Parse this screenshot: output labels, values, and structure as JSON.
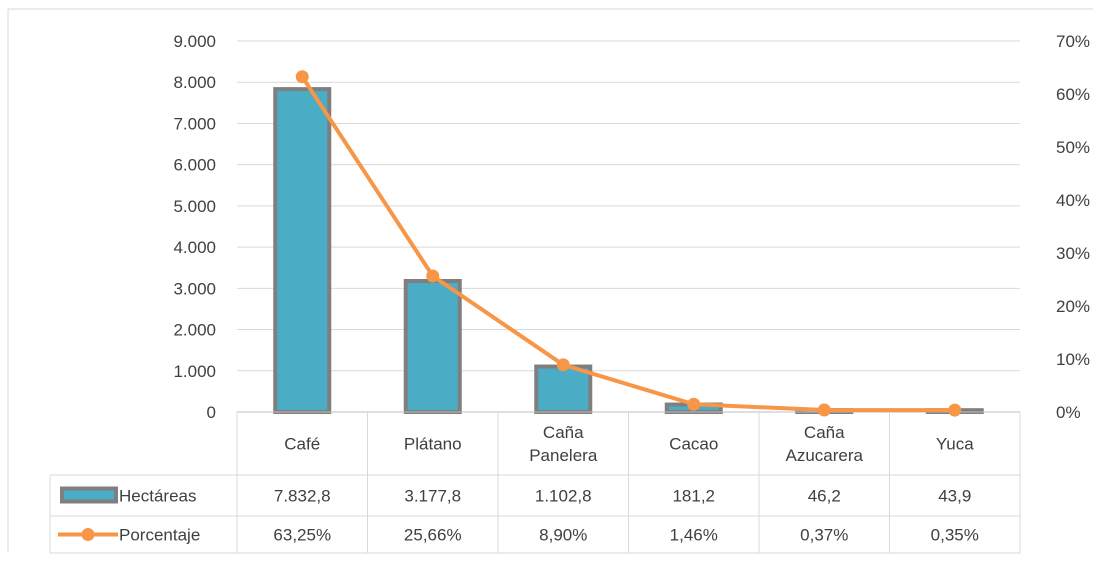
{
  "chart_data": {
    "type": "bar",
    "categories": [
      "Café",
      "Plátano",
      "Caña Panelera",
      "Cacao",
      "Caña Azucarera",
      "Yuca"
    ],
    "category_lines": [
      [
        "Café"
      ],
      [
        "Plátano"
      ],
      [
        "Caña",
        "Panelera"
      ],
      [
        "Cacao"
      ],
      [
        "Caña",
        "Azucarera"
      ],
      [
        "Yuca"
      ]
    ],
    "series": [
      {
        "name": "Hectáreas",
        "type": "bar",
        "axis": "left",
        "values": [
          7832.8,
          3177.8,
          1102.8,
          181.2,
          46.2,
          43.9
        ],
        "color": "#4bacc6",
        "border": "#7f7f7f"
      },
      {
        "name": "Porcentaje",
        "type": "line",
        "axis": "right",
        "values": [
          63.25,
          25.66,
          8.9,
          1.46,
          0.37,
          0.35
        ],
        "color": "#f79646"
      }
    ],
    "left_axis": {
      "min": 0,
      "max": 9000,
      "ticks": [
        "0",
        "1.000",
        "2.000",
        "3.000",
        "4.000",
        "5.000",
        "6.000",
        "7.000",
        "8.000",
        "9.000"
      ]
    },
    "right_axis": {
      "min": 0,
      "max": 70,
      "ticks": [
        "0%",
        "10%",
        "20%",
        "30%",
        "40%",
        "50%",
        "60%",
        "70%"
      ]
    },
    "data_table": {
      "rows": [
        {
          "label": "Hectáreas",
          "cells": [
            "7.832,8",
            "3.177,8",
            "1.102,8",
            "181,2",
            "46,2",
            "43,9"
          ]
        },
        {
          "label": "Porcentaje",
          "cells": [
            "63,25%",
            "25,66%",
            "8,90%",
            "1,46%",
            "0,37%",
            "0,35%"
          ]
        }
      ]
    },
    "grid": true,
    "legend": "data-table",
    "title": "",
    "xlabel": "",
    "ylabel": ""
  }
}
